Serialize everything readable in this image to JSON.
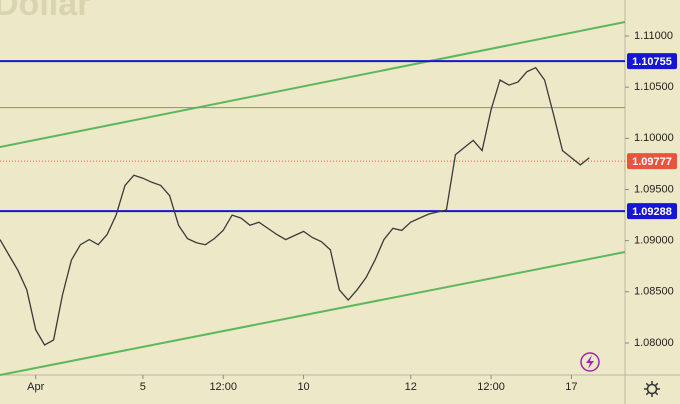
{
  "chart_data": {
    "type": "line",
    "title": "Dollar",
    "x": [
      0,
      1,
      2,
      3,
      4,
      5,
      6,
      7,
      8,
      9,
      10,
      11,
      12,
      13,
      14,
      15,
      16,
      17,
      18,
      19,
      20,
      21,
      22,
      23,
      24,
      25,
      26,
      27,
      28,
      29,
      30,
      31,
      32,
      33,
      34,
      35,
      36,
      37,
      38,
      39,
      40,
      41,
      42,
      43,
      44,
      45,
      46,
      47,
      48,
      49,
      50,
      51,
      52,
      53,
      54,
      55,
      56,
      57,
      58,
      59,
      60,
      61,
      62,
      63,
      64,
      65,
      66
    ],
    "values": [
      1.0901,
      1.0886,
      1.0871,
      1.0852,
      1.0813,
      1.0798,
      1.0803,
      1.0847,
      1.0881,
      1.0896,
      1.0901,
      1.0896,
      1.0906,
      1.0925,
      1.0954,
      1.0964,
      1.0961,
      1.0957,
      1.0954,
      1.0944,
      1.0915,
      1.0902,
      1.0898,
      1.0896,
      1.0902,
      1.091,
      1.0925,
      1.0922,
      1.0915,
      1.0918,
      1.0912,
      1.0906,
      1.0901,
      1.0905,
      1.0909,
      1.0903,
      1.0899,
      1.0891,
      1.0852,
      1.0842,
      1.0852,
      1.0864,
      1.0881,
      1.0901,
      1.0912,
      1.091,
      1.0918,
      1.0922,
      1.0926,
      1.0928,
      1.093,
      1.0984,
      1.0991,
      1.0998,
      1.0988,
      1.1028,
      1.1057,
      1.1052,
      1.1055,
      1.1065,
      1.1069,
      1.1057,
      1.1023,
      1.0988,
      1.0981,
      1.0974,
      1.0981
    ],
    "color": "#3a3a3a",
    "xlim": [
      0,
      70
    ],
    "xticks": [
      {
        "value": 4,
        "label": "Apr"
      },
      {
        "value": 16,
        "label": "5"
      },
      {
        "value": 25,
        "label": "12:00"
      },
      {
        "value": 34,
        "label": "10"
      },
      {
        "value": 46,
        "label": "12"
      },
      {
        "value": 55,
        "label": "12:00"
      },
      {
        "value": 64,
        "label": "17"
      }
    ],
    "ylim": [
      1.07687,
      1.11352
    ],
    "yticks": [
      {
        "value": 1.11,
        "label": "1.11000"
      },
      {
        "value": 1.105,
        "label": "1.10500"
      },
      {
        "value": 1.1,
        "label": "1.10000"
      },
      {
        "value": 1.095,
        "label": "1.09500"
      },
      {
        "value": 1.09,
        "label": "1.09000"
      },
      {
        "value": 1.085,
        "label": "1.08500"
      },
      {
        "value": 1.08,
        "label": "1.08000"
      }
    ],
    "levels": [
      {
        "value": 1.10755,
        "color": "#1515d6",
        "badge": true
      },
      {
        "value": 1.09288,
        "color": "#1515d6",
        "badge": true
      },
      {
        "value": 1.09777,
        "color": "#e8553f",
        "badge": true,
        "dotted": true
      },
      {
        "value": 1.103,
        "color": "#8c8c8c"
      }
    ],
    "trendlines": [
      {
        "color": "#5cb85c",
        "x": [
          0,
          70
        ],
        "values": [
          1.09915,
          1.11137
        ]
      },
      {
        "color": "#5cb85c",
        "x": [
          0,
          70
        ],
        "values": [
          1.07687,
          1.08889
        ]
      }
    ]
  }
}
